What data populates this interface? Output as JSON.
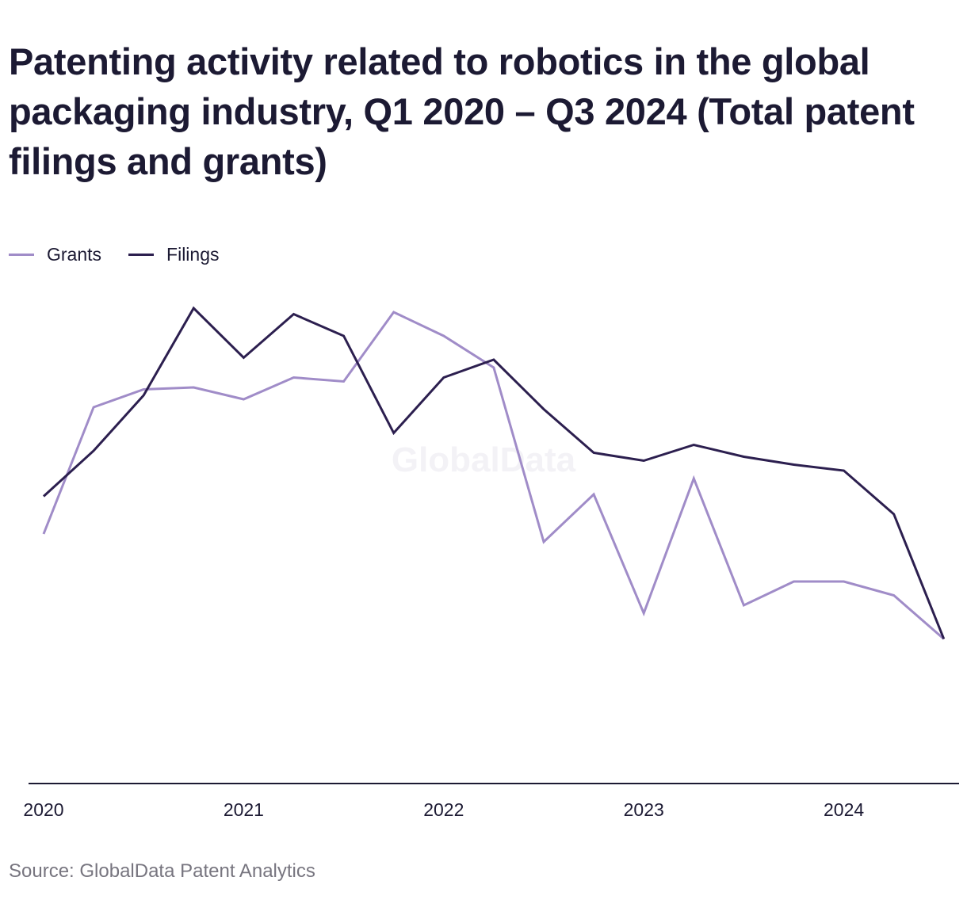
{
  "header": {
    "title": "Patenting activity related to robotics in the global packaging industry, Q1 2020 – Q3 2024 (Total patent filings and grants)"
  },
  "legend": {
    "items": [
      {
        "label": "Grants",
        "color": "#a08cc8"
      },
      {
        "label": "Filings",
        "color": "#2c1f4f"
      }
    ]
  },
  "watermark": "GlobalData",
  "footer": {
    "source": "Source: GlobalData Patent Analytics"
  },
  "colors": {
    "grants": "#a08cc8",
    "filings": "#2c1f4f",
    "axis": "#1c1a33",
    "text": "#1c1a33"
  },
  "chart_data": {
    "type": "line",
    "title": "Patenting activity related to robotics in the global packaging industry, Q1 2020 – Q3 2024 (Total patent filings and grants)",
    "xlabel": "",
    "ylabel": "",
    "x": [
      "Q1 2020",
      "Q2 2020",
      "Q3 2020",
      "Q4 2020",
      "Q1 2021",
      "Q2 2021",
      "Q3 2021",
      "Q4 2021",
      "Q1 2022",
      "Q2 2022",
      "Q3 2022",
      "Q4 2022",
      "Q1 2023",
      "Q2 2023",
      "Q3 2023",
      "Q4 2023",
      "Q1 2024",
      "Q2 2024",
      "Q3 2024"
    ],
    "x_tick_labels": [
      "2020",
      "2021",
      "2022",
      "2023",
      "2024"
    ],
    "ylim": [
      0,
      122
    ],
    "y_axis_labels_shown": false,
    "grid": false,
    "legend_position": "top-left",
    "series": [
      {
        "name": "Grants",
        "color": "#a08cc8",
        "values": [
          63,
          95,
          99.5,
          100,
          97,
          102.5,
          101.5,
          119,
          113,
          105,
          61,
          73,
          43,
          77,
          45,
          51,
          51,
          47.5,
          36.5
        ]
      },
      {
        "name": "Filings",
        "color": "#2c1f4f",
        "values": [
          72.5,
          84,
          98,
          120,
          107.5,
          118.5,
          113,
          88.5,
          102.5,
          107,
          94.5,
          83.5,
          81.5,
          85.5,
          82.5,
          80.5,
          79,
          68,
          36.5
        ]
      }
    ]
  }
}
